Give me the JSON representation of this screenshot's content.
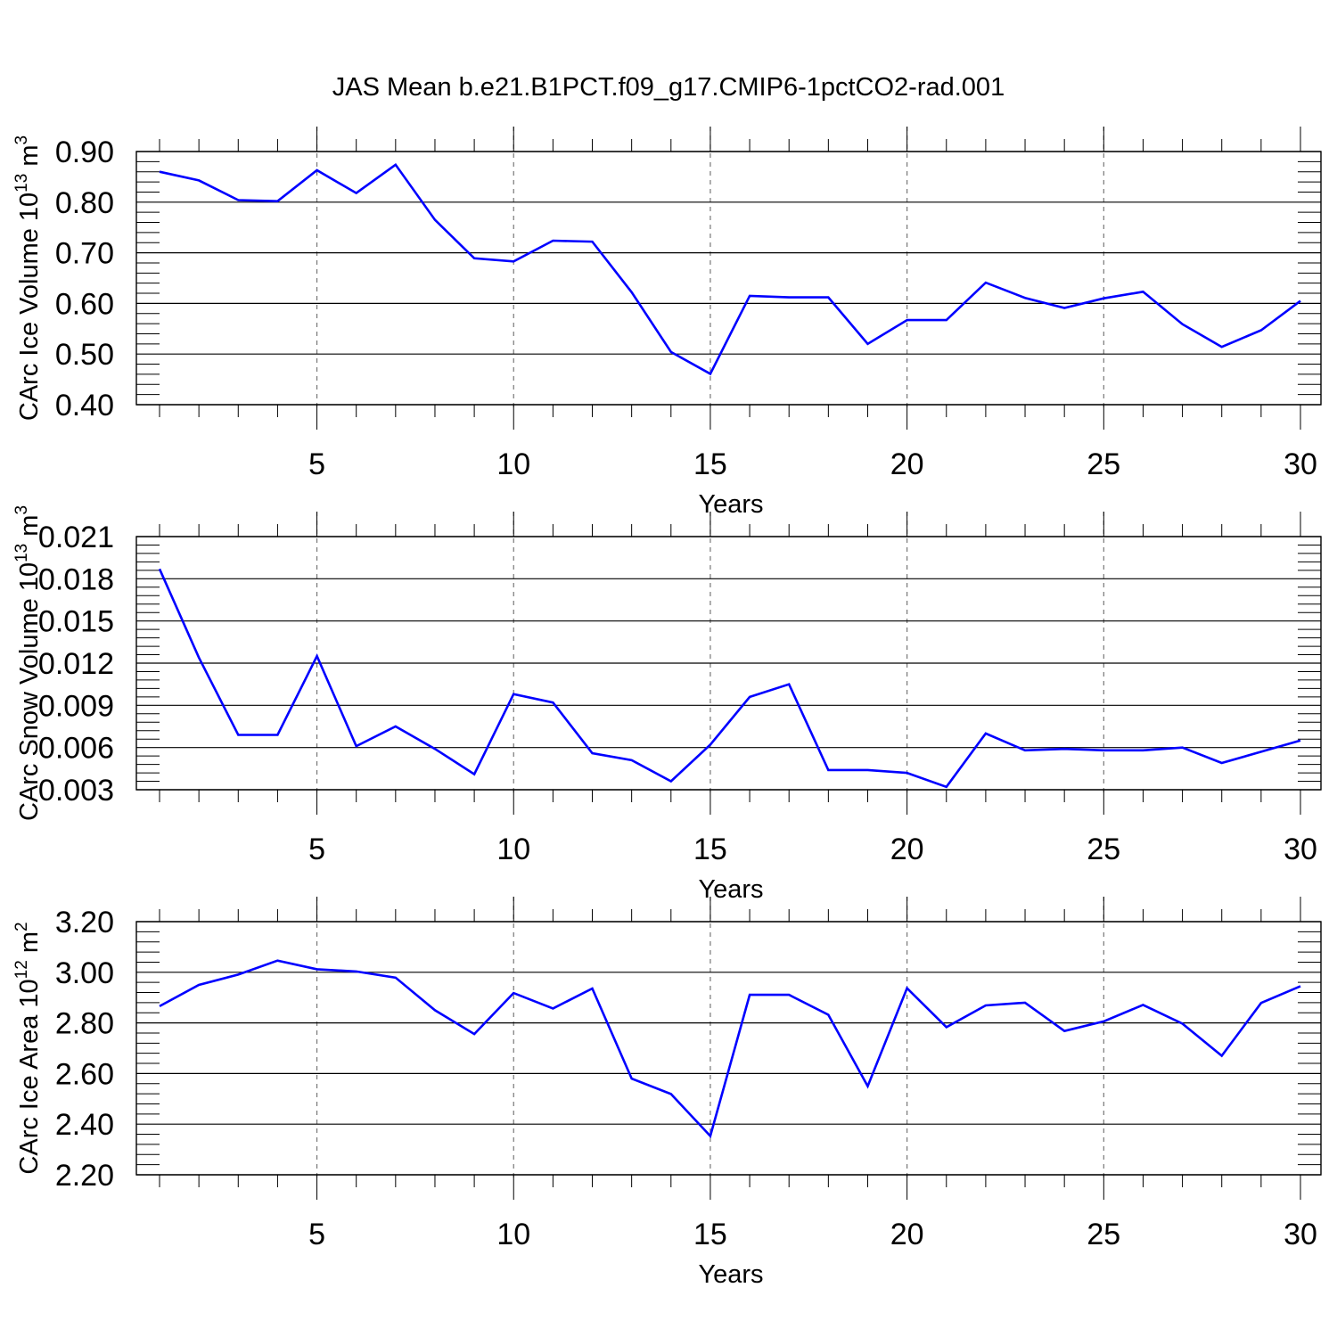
{
  "figure": {
    "title": "JAS Mean b.e21.B1PCT.f09_g17.CMIP6-1pctCO2-rad.001"
  },
  "chart_data": [
    {
      "type": "line",
      "ylabel": {
        "text": "CArc Ice Volume 10",
        "exponent": "13",
        "unit": " m",
        "unit_exponent": "3"
      },
      "xlabel": "Years",
      "xlim": [
        1,
        30
      ],
      "ylim": [
        0.4,
        0.9
      ],
      "x_ticks": [
        5,
        10,
        15,
        20,
        25,
        30
      ],
      "y_ticks": [
        "0.40",
        "0.50",
        "0.60",
        "0.70",
        "0.80",
        "0.90"
      ],
      "grid": "dashed vertical lines at major x ticks",
      "series": [
        {
          "color": "#0000ff",
          "x": [
            1,
            2,
            3,
            4,
            5,
            6,
            7,
            8,
            9,
            10,
            11,
            12,
            13,
            14,
            15,
            16,
            17,
            18,
            19,
            20,
            21,
            22,
            23,
            24,
            25,
            26,
            27,
            28,
            29,
            30
          ],
          "values": [
            0.86,
            0.843,
            0.804,
            0.802,
            0.863,
            0.818,
            0.874,
            0.765,
            0.689,
            0.683,
            0.724,
            0.722,
            0.622,
            0.504,
            0.461,
            0.615,
            0.612,
            0.612,
            0.52,
            0.567,
            0.567,
            0.641,
            0.611,
            0.591,
            0.61,
            0.623,
            0.559,
            0.514,
            0.547,
            0.605
          ]
        }
      ]
    },
    {
      "type": "line",
      "ylabel": {
        "text": "CArc Snow Volume 10",
        "exponent": "13",
        "unit": " m",
        "unit_exponent": "3"
      },
      "xlabel": "Years",
      "xlim": [
        1,
        30
      ],
      "ylim": [
        0.003,
        0.021
      ],
      "x_ticks": [
        5,
        10,
        15,
        20,
        25,
        30
      ],
      "y_ticks": [
        "0.003",
        "0.006",
        "0.009",
        "0.012",
        "0.015",
        "0.018",
        "0.021"
      ],
      "grid": "dashed vertical lines at major x ticks",
      "series": [
        {
          "color": "#0000ff",
          "x": [
            1,
            2,
            3,
            4,
            5,
            6,
            7,
            8,
            9,
            10,
            11,
            12,
            13,
            14,
            15,
            16,
            17,
            18,
            19,
            20,
            21,
            22,
            23,
            24,
            25,
            26,
            27,
            28,
            29,
            30
          ],
          "values": [
            0.0187,
            0.0124,
            0.0069,
            0.0069,
            0.0125,
            0.0061,
            0.0075,
            0.0059,
            0.0041,
            0.0098,
            0.0092,
            0.0056,
            0.0051,
            0.0036,
            0.0062,
            0.0096,
            0.0105,
            0.0044,
            0.0044,
            0.0042,
            0.0032,
            0.007,
            0.0058,
            0.0059,
            0.0058,
            0.0058,
            0.006,
            0.0049,
            0.0057,
            0.0065
          ]
        }
      ]
    },
    {
      "type": "line",
      "ylabel": {
        "text": "CArc Ice Area 10",
        "exponent": "12",
        "unit": " m",
        "unit_exponent": "2"
      },
      "xlabel": "Years",
      "xlim": [
        1,
        30
      ],
      "ylim": [
        2.2,
        3.2
      ],
      "x_ticks": [
        5,
        10,
        15,
        20,
        25,
        30
      ],
      "y_ticks": [
        "2.20",
        "2.40",
        "2.60",
        "2.80",
        "3.00",
        "3.20"
      ],
      "grid": "dashed vertical lines at major x ticks",
      "series": [
        {
          "color": "#0000ff",
          "x": [
            1,
            2,
            3,
            4,
            5,
            6,
            7,
            8,
            9,
            10,
            11,
            12,
            13,
            14,
            15,
            16,
            17,
            18,
            19,
            20,
            21,
            22,
            23,
            24,
            25,
            26,
            27,
            28,
            29,
            30
          ],
          "values": [
            2.866,
            2.95,
            2.991,
            3.046,
            3.012,
            3.003,
            2.979,
            2.85,
            2.756,
            2.918,
            2.857,
            2.936,
            2.58,
            2.519,
            2.353,
            2.911,
            2.911,
            2.832,
            2.55,
            2.937,
            2.783,
            2.869,
            2.88,
            2.768,
            2.806,
            2.871,
            2.797,
            2.67,
            2.879,
            2.945
          ]
        }
      ]
    }
  ]
}
